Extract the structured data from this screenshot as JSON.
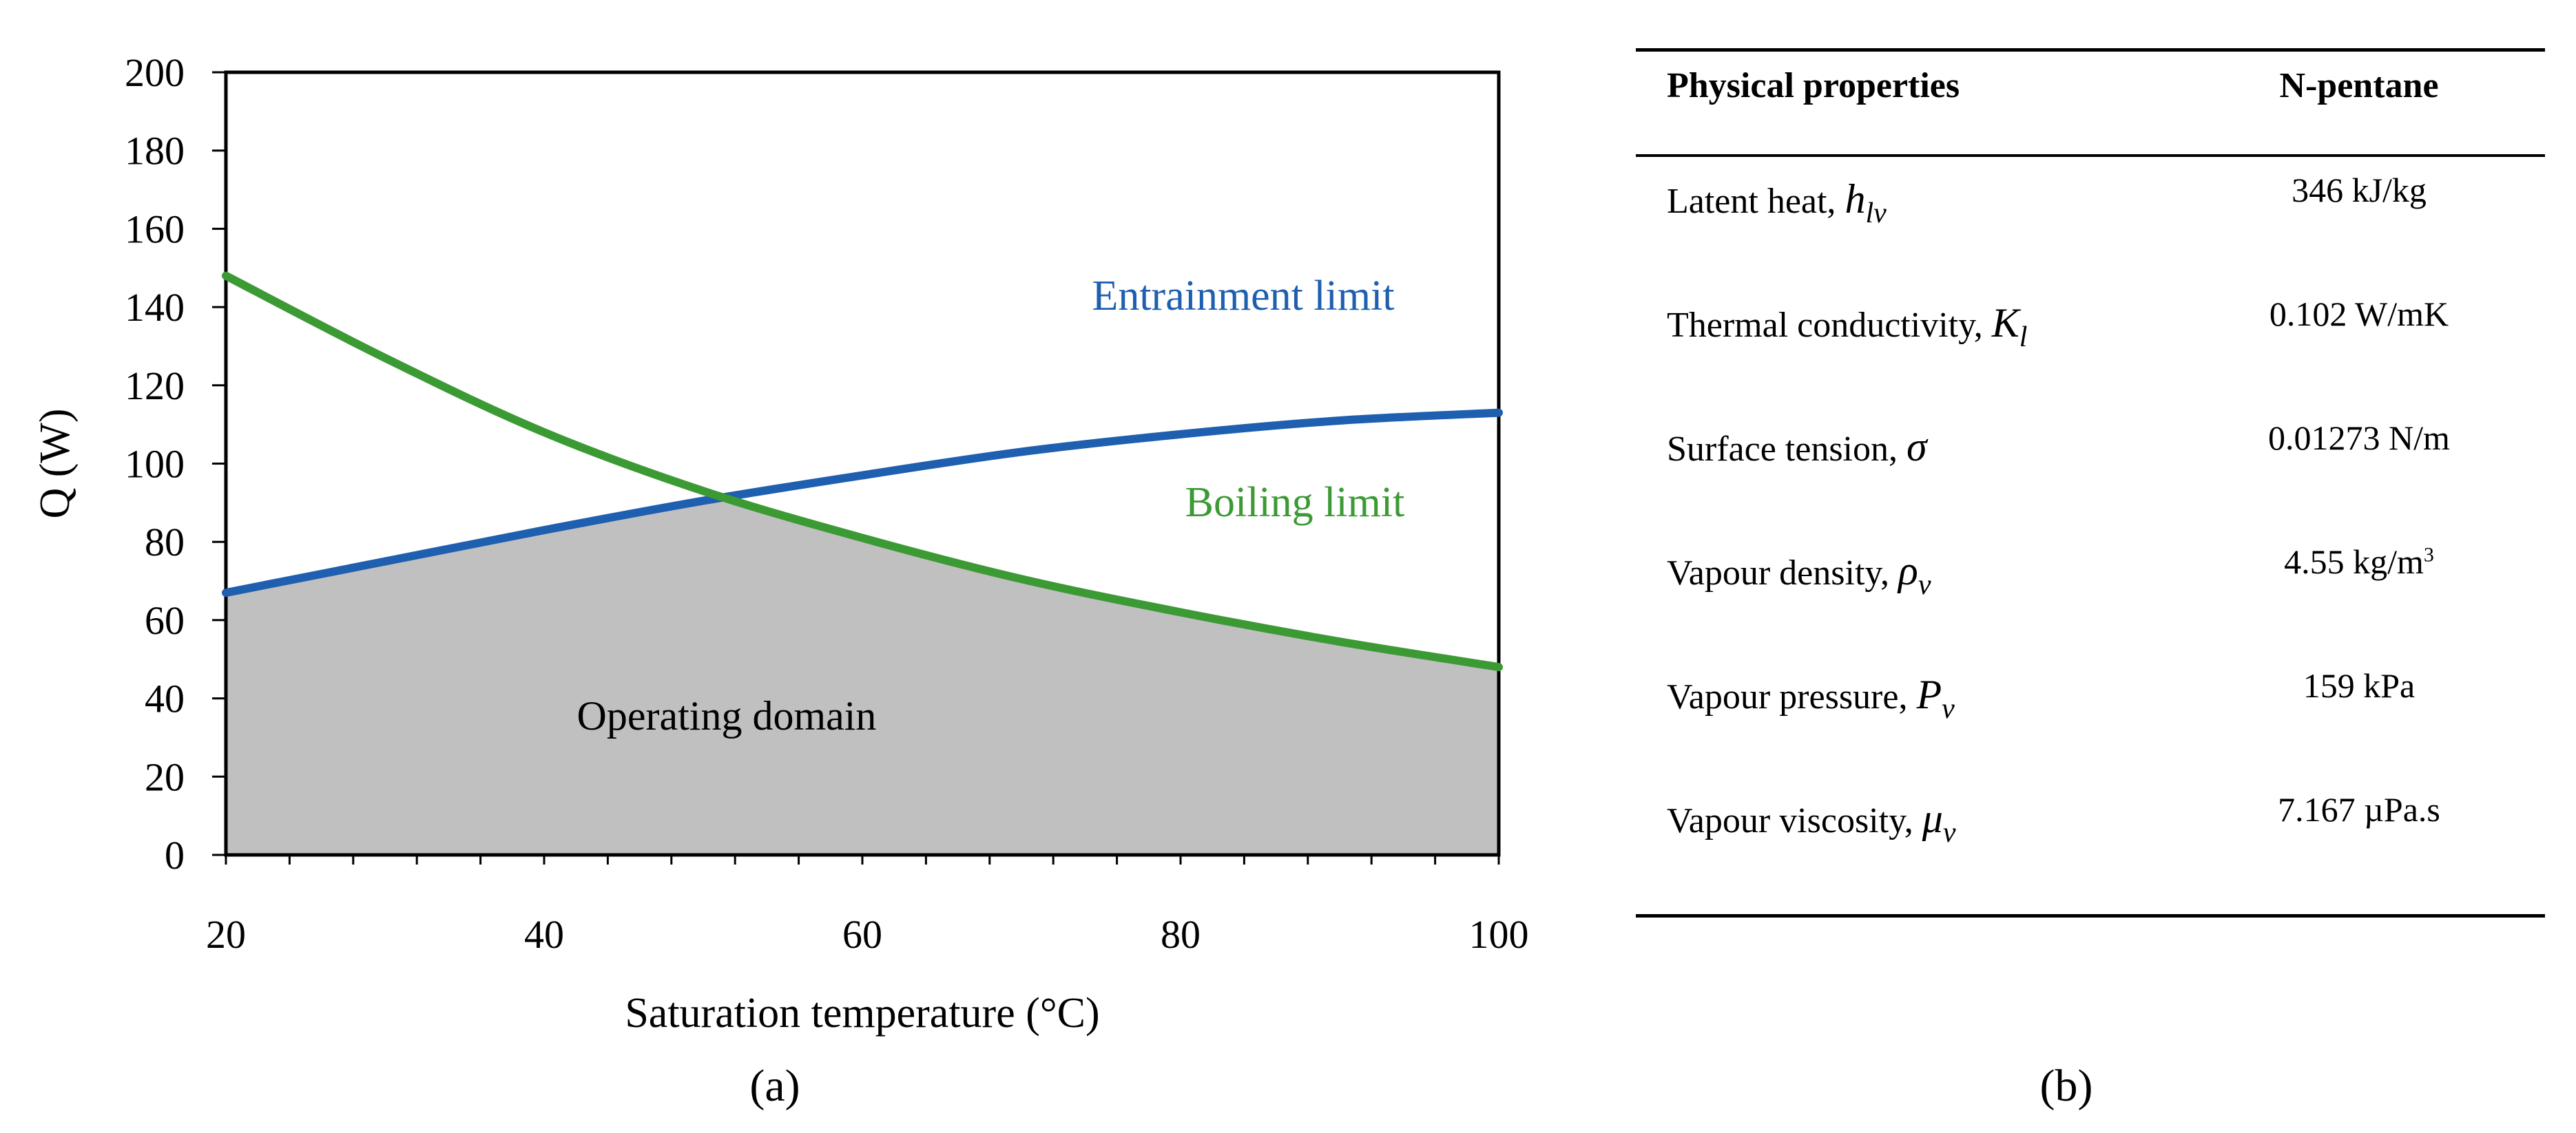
{
  "chart_data": {
    "type": "line",
    "xlabel": "Saturation temperature (°C)",
    "ylabel": "Q (W)",
    "xlim": [
      20,
      100
    ],
    "ylim": [
      0,
      200
    ],
    "x_ticks": [
      20,
      40,
      60,
      80,
      100
    ],
    "y_ticks": [
      0,
      20,
      40,
      60,
      80,
      100,
      120,
      140,
      160,
      180,
      200
    ],
    "x_minor_step": 4,
    "grid": false,
    "series": [
      {
        "name": "Entrainment limit",
        "color": "#1f5fb0",
        "x": [
          20,
          30,
          40,
          50,
          60,
          70,
          80,
          90,
          100
        ],
        "values": [
          67,
          75,
          83,
          90.5,
          97,
          103,
          107.5,
          111,
          113
        ]
      },
      {
        "name": "Boiling limit",
        "color": "#3c9a34",
        "x": [
          20,
          30,
          40,
          50,
          60,
          70,
          80,
          90,
          100
        ],
        "values": [
          148,
          127,
          108,
          93,
          81,
          70.5,
          62,
          54.5,
          48
        ]
      }
    ],
    "shaded_region": {
      "label": "Operating domain",
      "color": "#c0c0c0"
    },
    "annotations": [
      "Entrainment limit",
      "Boiling limit",
      "Operating domain"
    ]
  },
  "panel_labels": {
    "a": "(a)",
    "b": "(b)"
  },
  "table": {
    "headers": [
      "Physical properties",
      "N-pentane"
    ],
    "rows": [
      {
        "label": "Latent heat, ",
        "symbol": "h",
        "sub": "lv",
        "value": "346 kJ/kg",
        "sup": ""
      },
      {
        "label": "Thermal conductivity, ",
        "symbol": "K",
        "sub": "l",
        "value": "0.102 W/mK",
        "sup": ""
      },
      {
        "label": "Surface tension, ",
        "symbol": "σ",
        "sub": "",
        "value": "0.01273 N/m",
        "sup": ""
      },
      {
        "label": "Vapour density, ",
        "symbol": "ρ",
        "sub": "v",
        "value": "4.55 kg/m",
        "sup": "3"
      },
      {
        "label": "Vapour pressure, ",
        "symbol": "P",
        "sub": "v",
        "value": "159 kPa",
        "sup": ""
      },
      {
        "label": "Vapour viscosity, ",
        "symbol": "μ",
        "sub": "v",
        "value": "7.167 µPa.s",
        "sup": ""
      }
    ]
  }
}
